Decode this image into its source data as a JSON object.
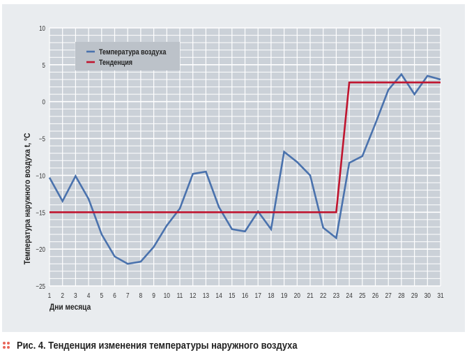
{
  "caption": "Рис. 4. Тенденция изменения температуры наружного воздуха",
  "chart_data": {
    "type": "line",
    "title": "",
    "xlabel": "Дни месяца",
    "ylabel": "Температура наружного воздуха t, °C",
    "x": [
      1,
      2,
      3,
      4,
      5,
      6,
      7,
      8,
      9,
      10,
      11,
      12,
      13,
      14,
      15,
      16,
      17,
      18,
      19,
      20,
      21,
      22,
      23,
      24,
      25,
      26,
      27,
      28,
      29,
      30,
      31
    ],
    "xticks": [
      "1",
      "2",
      "3",
      "4",
      "5",
      "6",
      "7",
      "8",
      "9",
      "10",
      "11",
      "12",
      "13",
      "14",
      "15",
      "16",
      "17",
      "18",
      "19",
      "20",
      "21",
      "22",
      "23",
      "24",
      "25",
      "26",
      "27",
      "28",
      "29",
      "30",
      "31"
    ],
    "yticks": [
      "10",
      "5",
      "0",
      "−5",
      "−10",
      "−15",
      "−20",
      "−25"
    ],
    "ylim": [
      -25,
      10
    ],
    "xlim": [
      1,
      31
    ],
    "grid": true,
    "legend_position": "upper-left-inside",
    "series": [
      {
        "name": "Температура воздуха",
        "color": "#4a72ad",
        "values": [
          -10.3,
          -13.5,
          -10.1,
          -13.2,
          -18.0,
          -21.0,
          -22.0,
          -21.7,
          -19.7,
          -16.8,
          -14.5,
          -9.8,
          -9.5,
          -14.3,
          -17.3,
          -17.6,
          -14.9,
          -17.3,
          -6.8,
          -8.2,
          -10.0,
          -17.1,
          -18.5,
          -8.3,
          -7.4,
          -3.0,
          1.6,
          3.7,
          1.0,
          3.5,
          3.0
        ]
      },
      {
        "name": "Тенденция",
        "color": "#c0152f",
        "values": [
          -15,
          -15,
          -15,
          -15,
          -15,
          -15,
          -15,
          -15,
          -15,
          -15,
          -15,
          -15,
          -15,
          -15,
          -15,
          -15,
          -15,
          -15,
          -15,
          -15,
          -15,
          -15,
          -15,
          2.6,
          2.6,
          2.6,
          2.6,
          2.6,
          2.6,
          2.6,
          2.6
        ]
      }
    ]
  }
}
